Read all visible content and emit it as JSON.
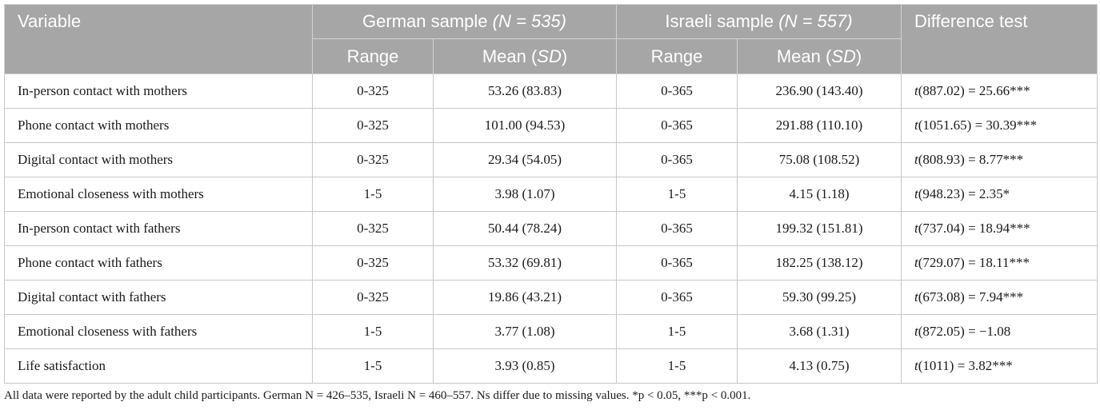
{
  "header": {
    "variable": "Variable",
    "german_group": "German sample",
    "german_n": "(N = 535)",
    "israeli_group": "Israeli sample",
    "israeli_n": "(N = 557)",
    "difference": "Difference test",
    "range": "Range",
    "mean_prefix": "Mean (",
    "mean_sd": "SD",
    "mean_suffix": ")"
  },
  "rows": [
    {
      "variable": "In-person contact with mothers",
      "g_range": "0-325",
      "g_mean": "53.26 (83.83)",
      "i_range": "0-365",
      "i_mean": "236.90 (143.40)",
      "test_t": "t",
      "test_rest": "(887.02) = 25.66***"
    },
    {
      "variable": "Phone contact with mothers",
      "g_range": "0-325",
      "g_mean": "101.00 (94.53)",
      "i_range": "0-365",
      "i_mean": "291.88 (110.10)",
      "test_t": "t",
      "test_rest": "(1051.65) = 30.39***"
    },
    {
      "variable": "Digital contact with mothers",
      "g_range": "0-325",
      "g_mean": "29.34 (54.05)",
      "i_range": "0-365",
      "i_mean": "75.08 (108.52)",
      "test_t": "t",
      "test_rest": "(808.93) = 8.77***"
    },
    {
      "variable": "Emotional closeness with mothers",
      "g_range": "1-5",
      "g_mean": "3.98 (1.07)",
      "i_range": "1-5",
      "i_mean": "4.15 (1.18)",
      "test_t": "t",
      "test_rest": "(948.23) = 2.35*"
    },
    {
      "variable": "In-person contact with fathers",
      "g_range": "0-325",
      "g_mean": "50.44 (78.24)",
      "i_range": "0-365",
      "i_mean": "199.32 (151.81)",
      "test_t": "t",
      "test_rest": "(737.04) = 18.94***"
    },
    {
      "variable": "Phone contact with fathers",
      "g_range": "0-325",
      "g_mean": "53.32 (69.81)",
      "i_range": "0-365",
      "i_mean": "182.25 (138.12)",
      "test_t": "t",
      "test_rest": "(729.07) = 18.11***"
    },
    {
      "variable": "Digital contact with fathers",
      "g_range": "0-325",
      "g_mean": "19.86 (43.21)",
      "i_range": "0-365",
      "i_mean": "59.30 (99.25)",
      "test_t": "t",
      "test_rest": "(673.08) = 7.94***"
    },
    {
      "variable": "Emotional closeness with fathers",
      "g_range": "1-5",
      "g_mean": "3.77 (1.08)",
      "i_range": "1-5",
      "i_mean": "3.68 (1.31)",
      "test_t": "t",
      "test_rest": "(872.05) = −1.08"
    },
    {
      "variable": "Life satisfaction",
      "g_range": "1-5",
      "g_mean": "3.93 (0.85)",
      "i_range": "1-5",
      "i_mean": "4.13 (0.75)",
      "test_t": "t",
      "test_rest": "(1011) = 3.82***"
    }
  ],
  "footnote": "All data were reported by the adult child participants. German N = 426–535, Israeli N = 460–557. Ns differ due to missing values. *p < 0.05, ***p < 0.001.",
  "colors": {
    "header_bg": "#a6a6a6",
    "header_text": "#ffffff",
    "grid": "#c8c8c8"
  }
}
